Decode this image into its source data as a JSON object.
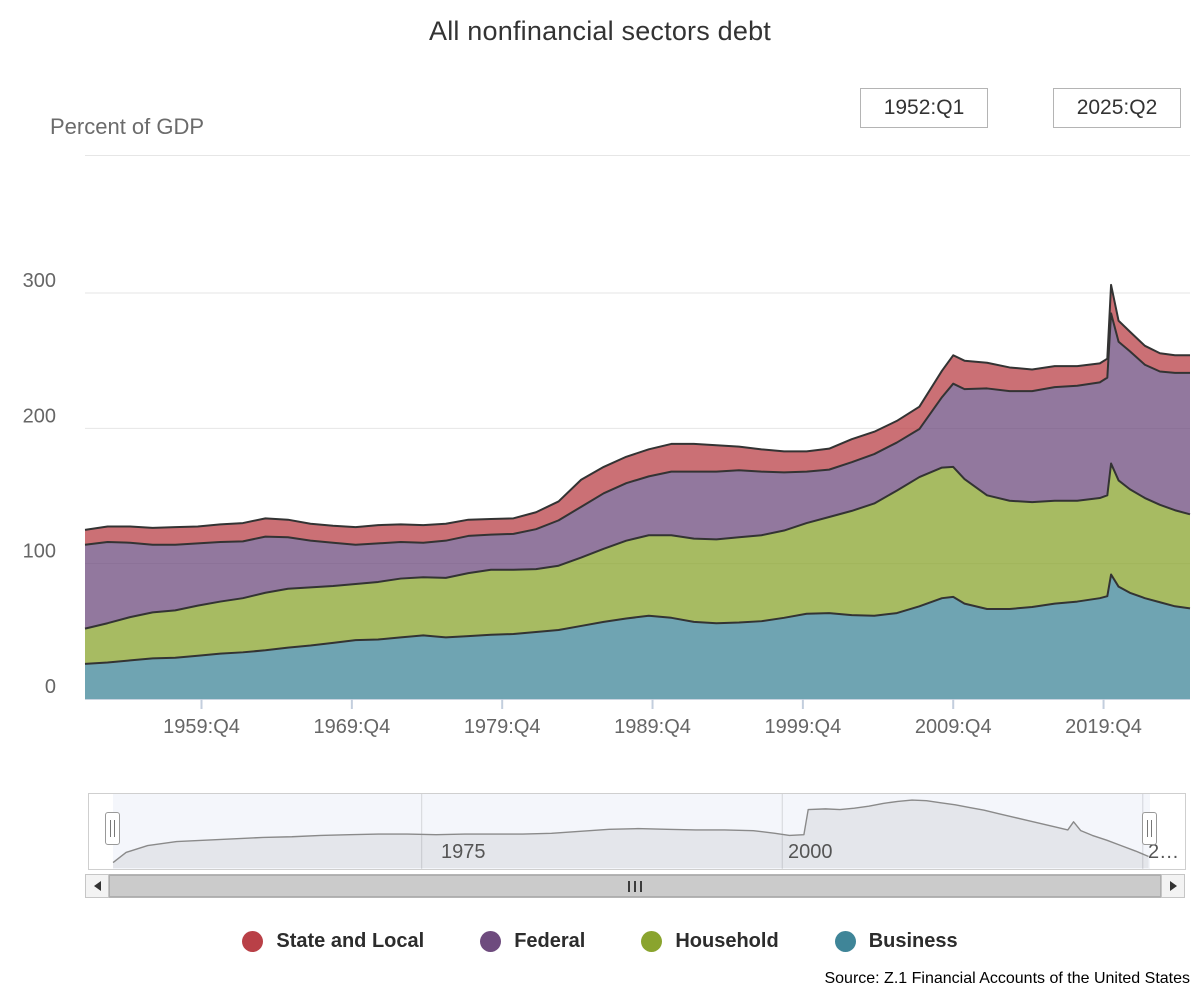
{
  "title": "All nonfinancial sectors debt",
  "y_axis_title": "Percent of GDP",
  "source": "Source: Z.1 Financial Accounts of the United States",
  "range_selector": {
    "start": "1952:Q1",
    "end": "2025:Q2"
  },
  "legend": {
    "items": [
      {
        "label": "State and Local",
        "color": "#b94047"
      },
      {
        "label": "Federal",
        "color": "#6e4b7e"
      },
      {
        "label": "Household",
        "color": "#8aa42e"
      },
      {
        "label": "Business",
        "color": "#3f8598"
      }
    ]
  },
  "chart_data": {
    "type": "area",
    "stacking": "normal",
    "title": "All nonfinancial sectors debt",
    "xlabel": "",
    "ylabel": "Percent of GDP",
    "xlim": [
      1952,
      2025.5
    ],
    "ylim": [
      0,
      402
    ],
    "yticks": [
      0,
      100,
      200,
      300
    ],
    "xticks": [
      {
        "label": "1959:Q4",
        "x": 1959.75
      },
      {
        "label": "1969:Q4",
        "x": 1969.75
      },
      {
        "label": "1979:Q4",
        "x": 1979.75
      },
      {
        "label": "1989:Q4",
        "x": 1989.75
      },
      {
        "label": "1999:Q4",
        "x": 1999.75
      },
      {
        "label": "2009:Q4",
        "x": 2009.75
      },
      {
        "label": "2019:Q4",
        "x": 2019.75
      }
    ],
    "grid": true,
    "legend_position": "bottom",
    "fill_opacity": 0.75,
    "line_color": "#333333",
    "x": [
      1952,
      1953.5,
      1955,
      1956.5,
      1958,
      1959.5,
      1961,
      1962.5,
      1964,
      1965.5,
      1967,
      1968.5,
      1970,
      1971.5,
      1973,
      1974.5,
      1976,
      1977.5,
      1979,
      1980.5,
      1982,
      1983.5,
      1985,
      1986.5,
      1988,
      1989.5,
      1991,
      1992.5,
      1994,
      1995.5,
      1997,
      1998.5,
      2000,
      2001.5,
      2003,
      2004.5,
      2006,
      2007.5,
      2009,
      2009.75,
      2010.5,
      2012,
      2013.5,
      2015,
      2016.5,
      2018,
      2019.5,
      2020,
      2020.25,
      2020.75,
      2021.5,
      2022.5,
      2023.5,
      2024.5,
      2025.5
    ],
    "series": [
      {
        "name": "Business",
        "color": "#3f8598",
        "values": [
          26,
          27,
          28.5,
          30,
          30.5,
          32,
          33.5,
          34.5,
          36,
          38,
          39.5,
          41.5,
          43.5,
          44,
          45.5,
          47,
          45.5,
          46.5,
          47.5,
          48,
          49.5,
          51,
          54,
          57,
          59.5,
          61.5,
          60,
          57,
          56,
          56.5,
          57.5,
          60,
          63,
          63.5,
          62,
          61.5,
          63.5,
          68.5,
          74.5,
          75.5,
          70.5,
          66.5,
          66.5,
          68,
          70.5,
          72,
          74.5,
          76,
          92,
          83,
          78.5,
          74.5,
          71.5,
          68.5,
          67
        ]
      },
      {
        "name": "Household",
        "color": "#8aa42e",
        "values": [
          26,
          29,
          32,
          34,
          35,
          37,
          38.5,
          40,
          42.5,
          43.5,
          43,
          42,
          41.5,
          42.5,
          43.5,
          43,
          44,
          46.5,
          48,
          47.5,
          46.5,
          47.5,
          50.5,
          54,
          57.5,
          59.5,
          61,
          61.5,
          62,
          63,
          63.5,
          64.5,
          67,
          71,
          77,
          83,
          90.5,
          95.5,
          96.5,
          96,
          92,
          84,
          80,
          77.5,
          76,
          74.5,
          74,
          74.5,
          82,
          78.5,
          76.5,
          74,
          72,
          71,
          69.5
        ]
      },
      {
        "name": "Federal",
        "color": "#6e4b7e",
        "values": [
          62,
          60,
          55,
          50,
          48.5,
          46,
          44,
          42,
          41.5,
          38,
          34.5,
          32,
          29,
          28.5,
          27,
          25.5,
          27.5,
          27.5,
          26,
          26.5,
          29.5,
          33.5,
          37.5,
          41,
          42.5,
          43.5,
          47,
          49.5,
          50,
          49.5,
          47,
          43,
          38,
          35,
          36,
          36.5,
          35.5,
          35.5,
          52,
          61.5,
          66.5,
          79,
          81,
          82,
          84,
          85,
          85.5,
          87,
          111,
          102.5,
          102,
          98.5,
          98.5,
          101.5,
          104.5
        ]
      },
      {
        "name": "State and Local",
        "color": "#b94047",
        "values": [
          11,
          11.5,
          12,
          12.5,
          13,
          12.5,
          13,
          13.5,
          13.5,
          13,
          12.5,
          12.5,
          13,
          13.5,
          13,
          13,
          12.5,
          12,
          11.5,
          11.5,
          12.5,
          14,
          20,
          19.5,
          19.5,
          20,
          20.5,
          20.5,
          19.5,
          17.5,
          16.5,
          15.5,
          15,
          15.5,
          17,
          16.5,
          16,
          16.5,
          19.5,
          21,
          21,
          19,
          17.5,
          16,
          15.5,
          14.5,
          14,
          14,
          21,
          15.5,
          14.5,
          14,
          13.5,
          13,
          13
        ]
      }
    ]
  },
  "navigator": {
    "axis_labels": [
      {
        "label": "1975",
        "x": 1975
      },
      {
        "label": "2000",
        "x": 2000
      },
      {
        "label": "2…",
        "x": 2025
      }
    ],
    "preview": {
      "x": [
        1953.6,
        1954.5,
        1956,
        1958,
        1960,
        1962,
        1964,
        1966,
        1968,
        1970,
        1972,
        1974,
        1976,
        1978,
        1980,
        1982,
        1984,
        1986,
        1988,
        1990,
        1992,
        1994,
        1996,
        1998,
        1999.5,
        2000.5,
        2001.5,
        2001.8,
        2003,
        2004,
        2005,
        2006,
        2007,
        2008,
        2009,
        2010,
        2011,
        2012,
        2013,
        2014,
        2015,
        2016,
        2017,
        2018,
        2019,
        2019.8,
        2020.2,
        2020.7,
        2021.5,
        2022.5,
        2023.5,
        2024.5,
        2025.4
      ],
      "y": [
        0.05,
        0.2,
        0.3,
        0.36,
        0.38,
        0.4,
        0.42,
        0.43,
        0.45,
        0.46,
        0.47,
        0.47,
        0.46,
        0.47,
        0.47,
        0.47,
        0.48,
        0.51,
        0.54,
        0.55,
        0.54,
        0.53,
        0.53,
        0.52,
        0.48,
        0.45,
        0.46,
        0.83,
        0.84,
        0.83,
        0.85,
        0.88,
        0.92,
        0.95,
        0.97,
        0.96,
        0.93,
        0.9,
        0.86,
        0.82,
        0.77,
        0.72,
        0.67,
        0.62,
        0.57,
        0.53,
        0.65,
        0.52,
        0.45,
        0.38,
        0.3,
        0.22,
        0.14
      ]
    }
  }
}
